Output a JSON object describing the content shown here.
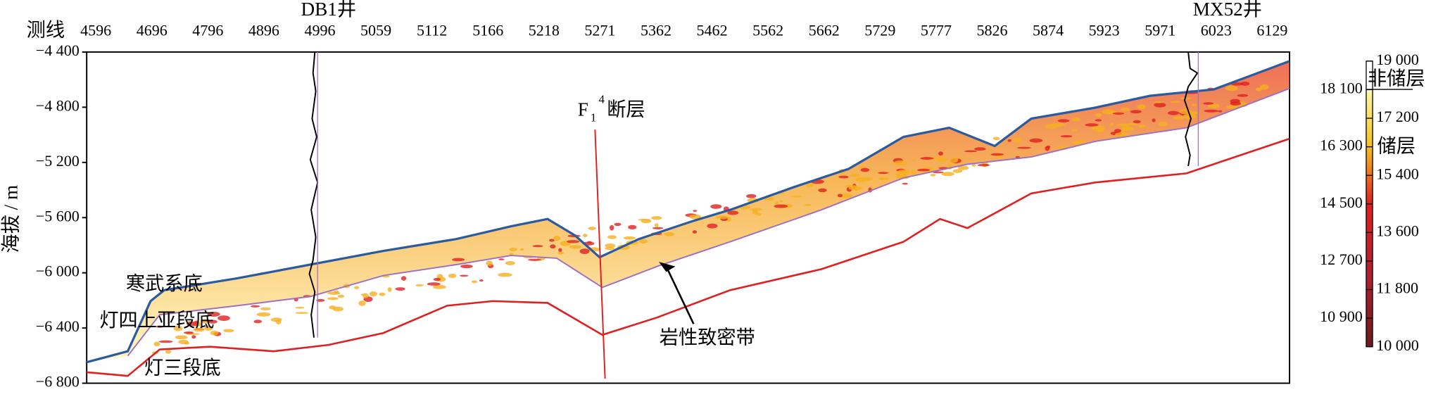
{
  "figure": {
    "x_axis_label": "测线",
    "x_labels": [
      "4596",
      "4696",
      "4796",
      "4896",
      "4996",
      "5059",
      "5112",
      "5166",
      "5218",
      "5271",
      "5362",
      "5462",
      "5562",
      "5662",
      "5729",
      "5777",
      "5826",
      "5874",
      "5923",
      "5971",
      "6023",
      "6129"
    ],
    "wells": [
      "DB1井",
      "MX52井"
    ],
    "y_axis_label": "海拔 / m",
    "ylim": [
      -6800,
      -4400
    ],
    "yticks": [
      {
        "value": -4400,
        "label": "−4 400"
      },
      {
        "value": -4800,
        "label": "−4 800"
      },
      {
        "value": -5200,
        "label": "−5 200"
      },
      {
        "value": -5600,
        "label": "−5 600"
      },
      {
        "value": -6000,
        "label": "−6 000"
      },
      {
        "value": -6400,
        "label": "−6 400"
      },
      {
        "value": -6800,
        "label": "−6 800"
      }
    ],
    "colorbar": {
      "lim": [
        10000,
        19000
      ],
      "ticks": [
        {
          "value": 19000,
          "label": "19 000"
        },
        {
          "value": 18100,
          "label": "18 100"
        },
        {
          "value": 17200,
          "label": "17 200"
        },
        {
          "value": 16300,
          "label": "16 300"
        },
        {
          "value": 15400,
          "label": "15 400"
        },
        {
          "value": 14500,
          "label": "14 500"
        },
        {
          "value": 13600,
          "label": "13 600"
        },
        {
          "value": 12700,
          "label": "12 700"
        },
        {
          "value": 11800,
          "label": "11 800"
        },
        {
          "value": 10900,
          "label": "10 900"
        },
        {
          "value": 10000,
          "label": "10 000"
        }
      ],
      "non_reservoir": "非储层",
      "reservoir": "储层"
    },
    "fault": {
      "base": "F",
      "sub": "1",
      "sup": "4",
      "text": "断层"
    },
    "annotations": [
      "寒武系底",
      "灯四上亚段底",
      "灯三段底",
      "岩性致密带"
    ]
  }
}
